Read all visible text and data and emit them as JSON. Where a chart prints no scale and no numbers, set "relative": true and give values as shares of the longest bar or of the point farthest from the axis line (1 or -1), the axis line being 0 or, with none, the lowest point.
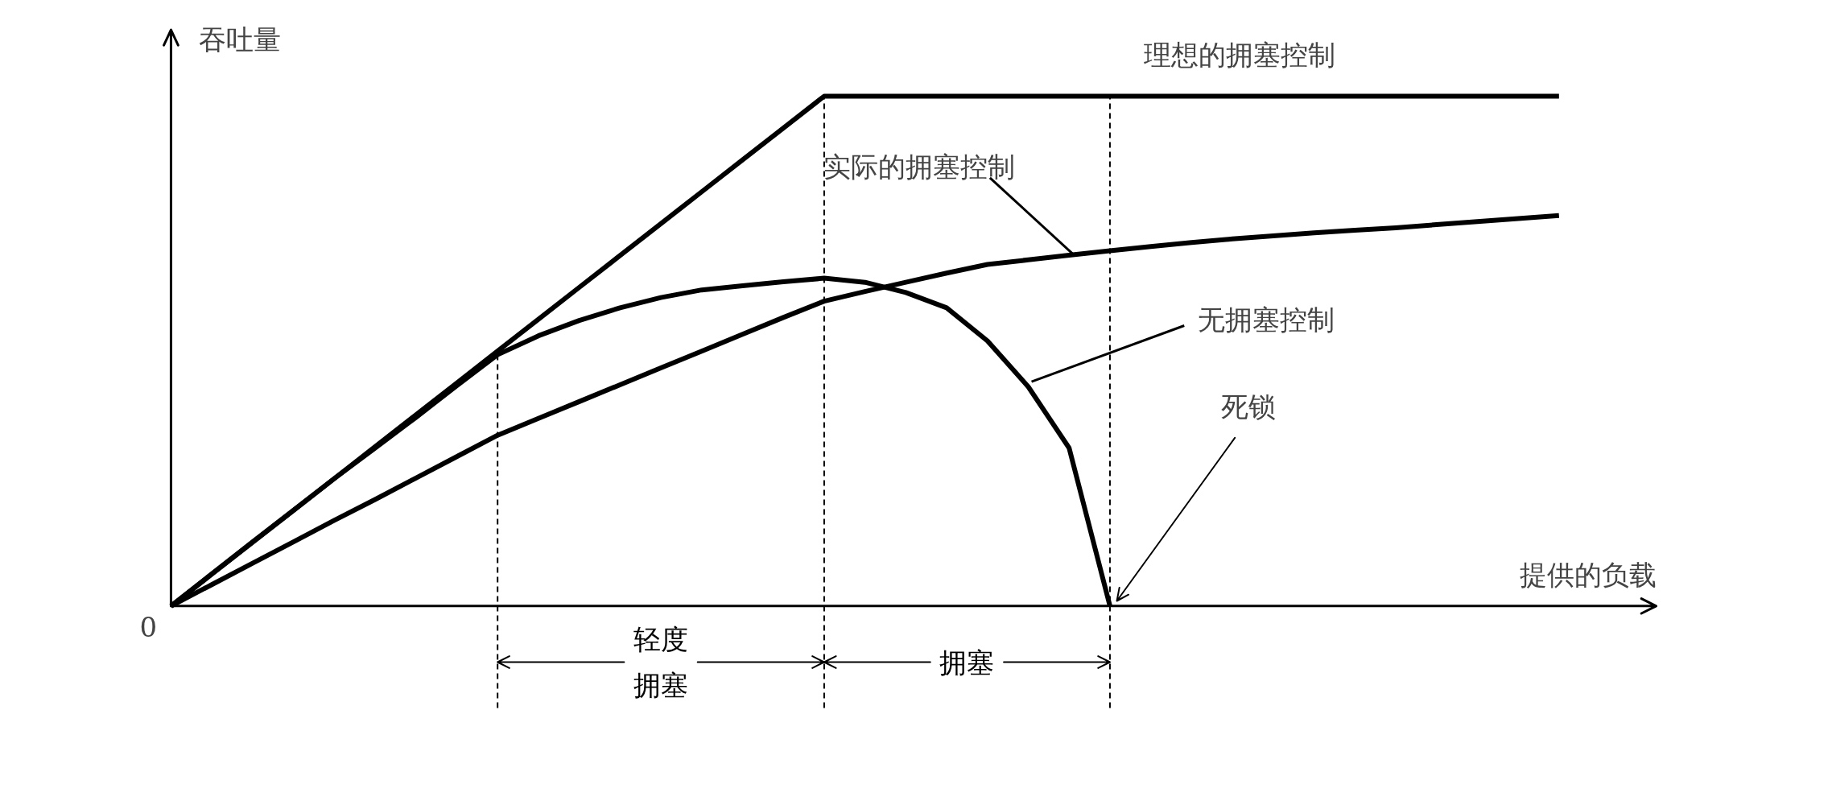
{
  "chart_data": {
    "type": "line",
    "relative": true,
    "xlabel": "提供的负载",
    "ylabel": "吞吐量",
    "categories": [
      null,
      null,
      null,
      null,
      null,
      null,
      null,
      null,
      null,
      null,
      null,
      null,
      null,
      null,
      null,
      null,
      null,
      null,
      null,
      null,
      null,
      null,
      null,
      null,
      null,
      null,
      null,
      null,
      null,
      null,
      null,
      null,
      null,
      null,
      null
    ],
    "series": [
      {
        "name": "理想的拥塞控制",
        "color": "#000000",
        "values": [
          0,
          0.0625,
          0.125,
          0.1875,
          0.25,
          0.3125,
          0.375,
          0.4375,
          0.5,
          0.5625,
          0.625,
          0.6875,
          0.75,
          0.8125,
          0.875,
          0.9375,
          1,
          1,
          1,
          1,
          1,
          1,
          1,
          1,
          1,
          1,
          1,
          1,
          1,
          1,
          1,
          1,
          1,
          1,
          1
        ]
      },
      {
        "name": "实际的拥塞控制",
        "color": "#000000",
        "values": [
          0,
          0.042,
          0.084,
          0.126,
          0.168,
          0.209,
          0.251,
          0.293,
          0.335,
          0.368,
          0.401,
          0.434,
          0.467,
          0.5,
          0.533,
          0.566,
          0.598,
          0.617,
          0.635,
          0.653,
          0.67,
          0.679,
          0.688,
          0.697,
          0.705,
          0.713,
          0.72,
          0.726,
          0.732,
          0.737,
          0.742,
          0.748,
          0.754,
          0.76,
          0.766
        ]
      },
      {
        "name": "无拥塞控制",
        "color": "#000000",
        "values": [
          0,
          0.063,
          0.126,
          0.188,
          0.25,
          0.31,
          0.37,
          0.432,
          0.493,
          0.53,
          0.56,
          0.585,
          0.605,
          0.62,
          0.628,
          0.636,
          0.643,
          0.635,
          0.615,
          0.585,
          0.52,
          0.43,
          0.31,
          0,
          null,
          null,
          null,
          null,
          null,
          null,
          null,
          null,
          null,
          null,
          null
        ]
      }
    ],
    "annotations": [
      "轻度拥塞",
      "拥塞",
      "死锁",
      "0"
    ],
    "line_style": "solid",
    "marker": "none",
    "grid": "x"
  }
}
